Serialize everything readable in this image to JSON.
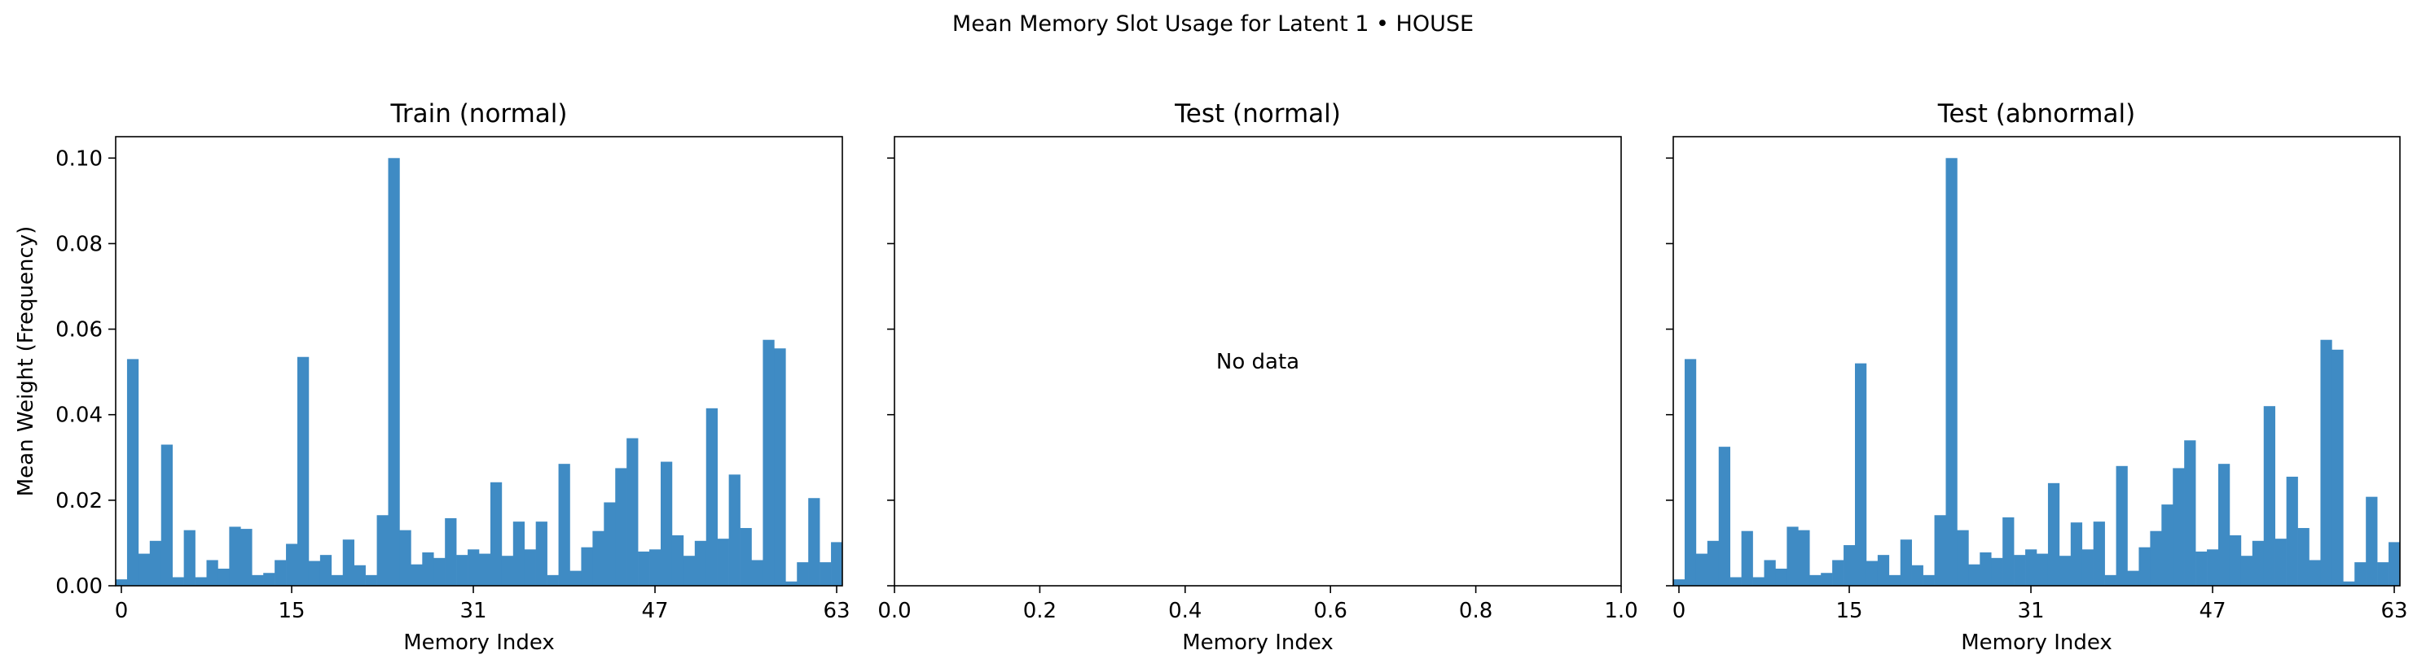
{
  "figure": {
    "suptitle": "Mean Memory Slot Usage for Latent 1 • HOUSE"
  },
  "chart_data": [
    {
      "type": "bar",
      "title": "Train (normal)",
      "xlabel": "Memory Index",
      "ylabel": "Mean Weight (Frequency)",
      "xlim": [
        -0.5,
        63.5
      ],
      "ylim": [
        0,
        0.105
      ],
      "xticks": [
        0,
        15,
        31,
        47,
        63
      ],
      "yticks": [
        0.0,
        0.02,
        0.04,
        0.06,
        0.08,
        0.1
      ],
      "ytick_labels": [
        "0.00",
        "0.02",
        "0.04",
        "0.06",
        "0.08",
        "0.10"
      ],
      "color": "#3f8bc4",
      "x": [
        0,
        1,
        2,
        3,
        4,
        5,
        6,
        7,
        8,
        9,
        10,
        11,
        12,
        13,
        14,
        15,
        16,
        17,
        18,
        19,
        20,
        21,
        22,
        23,
        24,
        25,
        26,
        27,
        28,
        29,
        30,
        31,
        32,
        33,
        34,
        35,
        36,
        37,
        38,
        39,
        40,
        41,
        42,
        43,
        44,
        45,
        46,
        47,
        48,
        49,
        50,
        51,
        52,
        53,
        54,
        55,
        56,
        57,
        58,
        59,
        60,
        61,
        62,
        63
      ],
      "values": [
        0.0015,
        0.053,
        0.0075,
        0.0105,
        0.033,
        0.002,
        0.013,
        0.002,
        0.006,
        0.004,
        0.0138,
        0.0133,
        0.0025,
        0.003,
        0.006,
        0.0098,
        0.0535,
        0.0058,
        0.0072,
        0.0025,
        0.0108,
        0.0048,
        0.0025,
        0.0165,
        0.1,
        0.013,
        0.005,
        0.0078,
        0.0065,
        0.0158,
        0.0072,
        0.0085,
        0.0075,
        0.0242,
        0.007,
        0.015,
        0.0085,
        0.015,
        0.0025,
        0.0285,
        0.0035,
        0.009,
        0.0128,
        0.0195,
        0.0275,
        0.0345,
        0.008,
        0.0085,
        0.029,
        0.0118,
        0.007,
        0.0105,
        0.0415,
        0.011,
        0.026,
        0.0135,
        0.006,
        0.0575,
        0.0555,
        0.001,
        0.0055,
        0.0205,
        0.0055,
        0.0102
      ]
    },
    {
      "type": "bar",
      "title": "Test (normal)",
      "xlabel": "Memory Index",
      "xlim": [
        0,
        1
      ],
      "ylim": [
        0,
        0.105
      ],
      "xticks": [
        0.0,
        0.2,
        0.4,
        0.6,
        0.8,
        1.0
      ],
      "xtick_labels": [
        "0.0",
        "0.2",
        "0.4",
        "0.6",
        "0.8",
        "1.0"
      ],
      "yticks": [
        0.0,
        0.02,
        0.04,
        0.06,
        0.08,
        0.1
      ],
      "annotation": "No data",
      "x": [],
      "values": []
    },
    {
      "type": "bar",
      "title": "Test (abnormal)",
      "xlabel": "Memory Index",
      "xlim": [
        -0.5,
        63.5
      ],
      "ylim": [
        0,
        0.105
      ],
      "xticks": [
        0,
        15,
        31,
        47,
        63
      ],
      "yticks": [
        0.0,
        0.02,
        0.04,
        0.06,
        0.08,
        0.1
      ],
      "color": "#3f8bc4",
      "x": [
        0,
        1,
        2,
        3,
        4,
        5,
        6,
        7,
        8,
        9,
        10,
        11,
        12,
        13,
        14,
        15,
        16,
        17,
        18,
        19,
        20,
        21,
        22,
        23,
        24,
        25,
        26,
        27,
        28,
        29,
        30,
        31,
        32,
        33,
        34,
        35,
        36,
        37,
        38,
        39,
        40,
        41,
        42,
        43,
        44,
        45,
        46,
        47,
        48,
        49,
        50,
        51,
        52,
        53,
        54,
        55,
        56,
        57,
        58,
        59,
        60,
        61,
        62,
        63
      ],
      "values": [
        0.0015,
        0.053,
        0.0075,
        0.0105,
        0.0325,
        0.002,
        0.0128,
        0.002,
        0.006,
        0.004,
        0.0138,
        0.013,
        0.0025,
        0.003,
        0.006,
        0.0095,
        0.052,
        0.0058,
        0.0072,
        0.0025,
        0.0108,
        0.0048,
        0.0025,
        0.0165,
        0.1,
        0.013,
        0.005,
        0.0078,
        0.0065,
        0.016,
        0.0072,
        0.0085,
        0.0075,
        0.024,
        0.007,
        0.0148,
        0.0085,
        0.015,
        0.0025,
        0.028,
        0.0035,
        0.009,
        0.0128,
        0.019,
        0.0275,
        0.034,
        0.008,
        0.0085,
        0.0285,
        0.0118,
        0.007,
        0.0105,
        0.042,
        0.011,
        0.0255,
        0.0135,
        0.006,
        0.0575,
        0.0552,
        0.001,
        0.0055,
        0.0208,
        0.0055,
        0.0102
      ]
    }
  ]
}
